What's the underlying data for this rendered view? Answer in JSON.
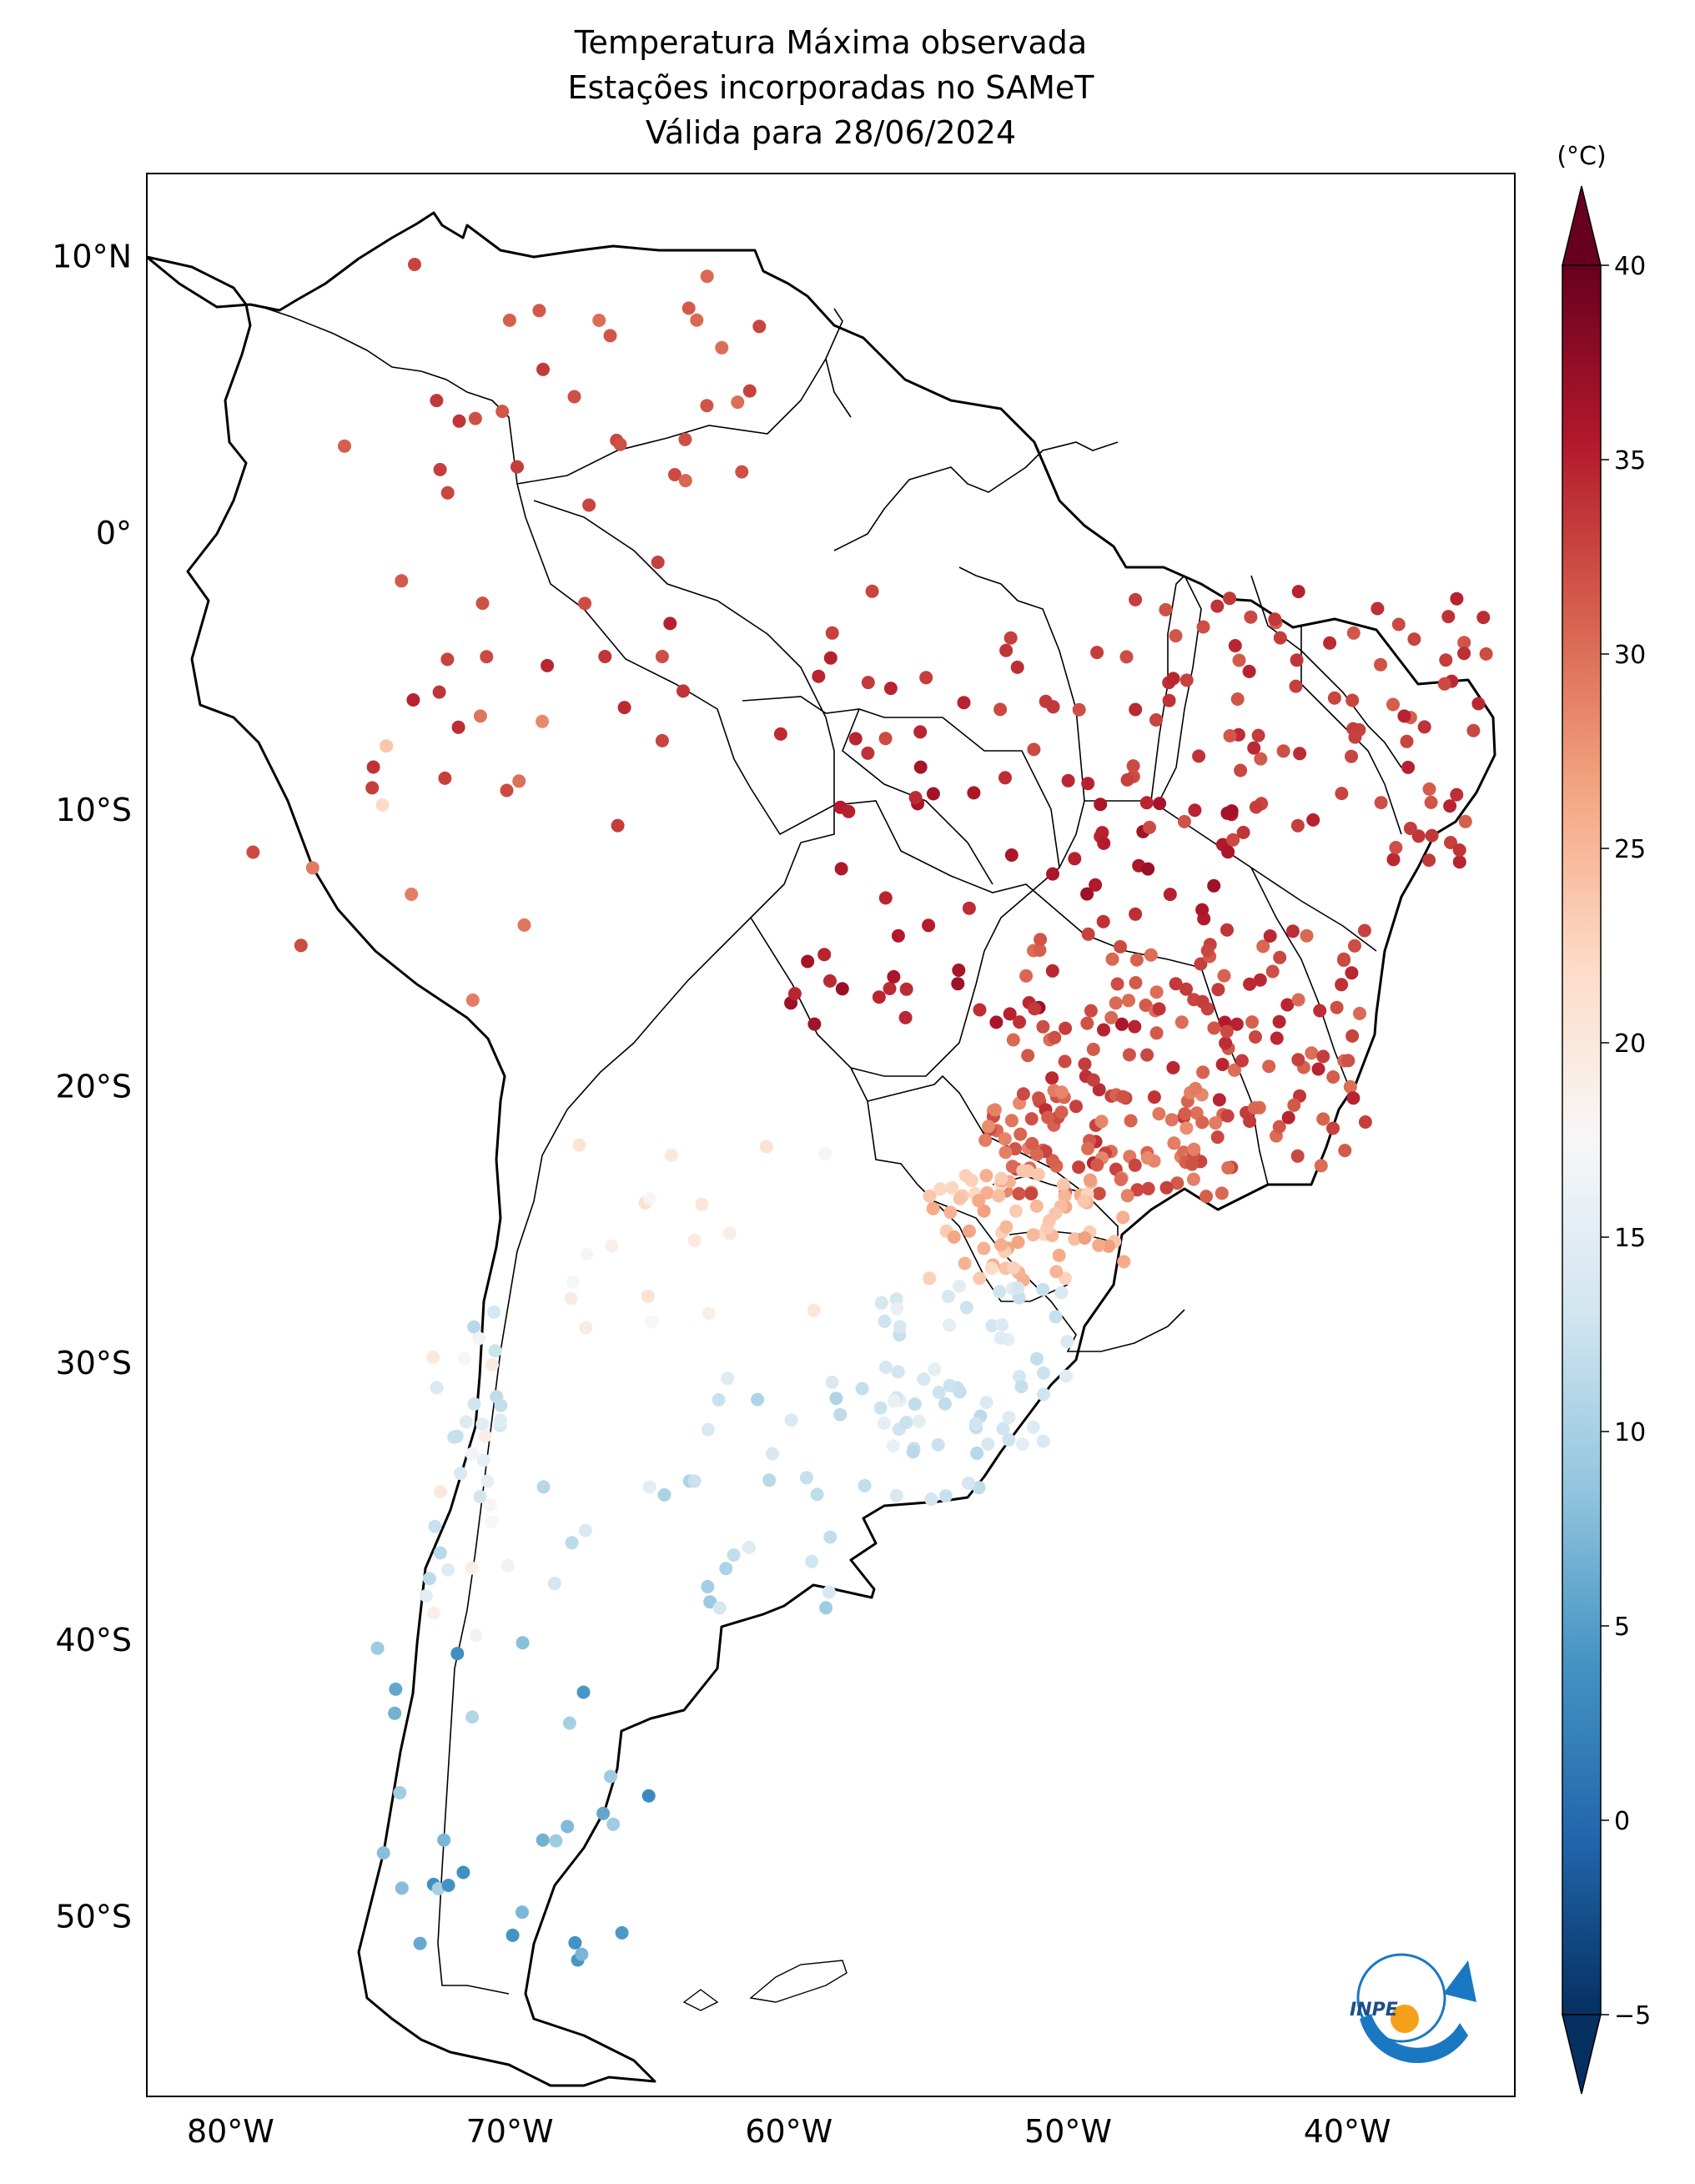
{
  "title": {
    "line1": "Temperatura Máxima observada",
    "line2": "Estações incorporadas no SAMeT",
    "line3": "Válida para 28/06/2024"
  },
  "map": {
    "lon_range": [
      -83,
      -34
    ],
    "lat_range": [
      -56.5,
      13
    ],
    "lat_ticks": [
      {
        "value": 10,
        "label": "10°N"
      },
      {
        "value": 0,
        "label": "0°"
      },
      {
        "value": -10,
        "label": "10°S"
      },
      {
        "value": -20,
        "label": "20°S"
      },
      {
        "value": -30,
        "label": "30°S"
      },
      {
        "value": -40,
        "label": "40°S"
      },
      {
        "value": -50,
        "label": "50°S"
      }
    ],
    "lon_ticks": [
      {
        "value": -80,
        "label": "80°W"
      },
      {
        "value": -70,
        "label": "70°W"
      },
      {
        "value": -60,
        "label": "60°W"
      },
      {
        "value": -50,
        "label": "50°W"
      },
      {
        "value": -40,
        "label": "40°W"
      }
    ]
  },
  "colorbar": {
    "unit": "(°C)",
    "min": -5,
    "max": 40,
    "ticks": [
      {
        "value": 40,
        "label": "40"
      },
      {
        "value": 35,
        "label": "35"
      },
      {
        "value": 30,
        "label": "30"
      },
      {
        "value": 25,
        "label": "25"
      },
      {
        "value": 20,
        "label": "20"
      },
      {
        "value": 15,
        "label": "15"
      },
      {
        "value": 10,
        "label": "10"
      },
      {
        "value": 5,
        "label": "5"
      },
      {
        "value": 0,
        "label": "0"
      },
      {
        "value": -5,
        "label": "−5"
      }
    ],
    "colors": [
      "#053061",
      "#2166ac",
      "#4393c3",
      "#92c5de",
      "#d1e5f0",
      "#f7f7f7",
      "#fddbc7",
      "#f4a582",
      "#d6604d",
      "#b2182b",
      "#67001f"
    ]
  },
  "logo": {
    "text": "INPE",
    "colors": [
      "#1a78c2",
      "#f5a01a"
    ]
  },
  "station_regions": [
    {
      "name": "north-colombia-venezuela",
      "lon": [
        -76,
        -61
      ],
      "lat": [
        0,
        11
      ],
      "temp": [
        30,
        34
      ],
      "n": 30
    },
    {
      "name": "amazon-west",
      "lon": [
        -75,
        -62
      ],
      "lat": [
        -12,
        -1
      ],
      "temp": [
        31,
        35
      ],
      "n": 20
    },
    {
      "name": "amazon-central",
      "lon": [
        -62,
        -48
      ],
      "lat": [
        -8,
        -2
      ],
      "temp": [
        32,
        35
      ],
      "n": 22
    },
    {
      "name": "central-west",
      "lon": [
        -60,
        -44
      ],
      "lat": [
        -18,
        -8
      ],
      "temp": [
        34,
        37
      ],
      "n": 60
    },
    {
      "name": "northeast",
      "lon": [
        -48,
        -35
      ],
      "lat": [
        -12,
        -2
      ],
      "temp": [
        31,
        35
      ],
      "n": 90
    },
    {
      "name": "southeast",
      "lon": [
        -52,
        -39
      ],
      "lat": [
        -23,
        -14
      ],
      "temp": [
        30,
        35
      ],
      "n": 140
    },
    {
      "name": "sao-paulo",
      "lon": [
        -53,
        -44
      ],
      "lat": [
        -24,
        -20
      ],
      "temp": [
        28,
        33
      ],
      "n": 80
    },
    {
      "name": "parana-sc",
      "lon": [
        -55,
        -48
      ],
      "lat": [
        -27,
        -23
      ],
      "temp": [
        22,
        27
      ],
      "n": 70
    },
    {
      "name": "rio-grande-sul",
      "lon": [
        -57,
        -50
      ],
      "lat": [
        -33,
        -27
      ],
      "temp": [
        12,
        16
      ],
      "n": 50
    },
    {
      "name": "uruguay",
      "lon": [
        -58,
        -53
      ],
      "lat": [
        -35,
        -30
      ],
      "temp": [
        11,
        14
      ],
      "n": 20
    },
    {
      "name": "argentina-north",
      "lon": [
        -68,
        -58
      ],
      "lat": [
        -30,
        -22
      ],
      "temp": [
        17,
        22
      ],
      "n": 18
    },
    {
      "name": "argentina-central",
      "lon": [
        -69,
        -57
      ],
      "lat": [
        -39,
        -30
      ],
      "temp": [
        9,
        15
      ],
      "n": 30
    },
    {
      "name": "chile-central",
      "lon": [
        -73,
        -70
      ],
      "lat": [
        -40,
        -28
      ],
      "temp": [
        11,
        20
      ],
      "n": 35
    },
    {
      "name": "patagonia",
      "lon": [
        -75,
        -65
      ],
      "lat": [
        -52,
        -40
      ],
      "temp": [
        3,
        11
      ],
      "n": 30
    },
    {
      "name": "andes-peru-bolivia",
      "lon": [
        -80,
        -66
      ],
      "lat": [
        -18,
        -6
      ],
      "temp": [
        22,
        33
      ],
      "n": 12
    }
  ]
}
